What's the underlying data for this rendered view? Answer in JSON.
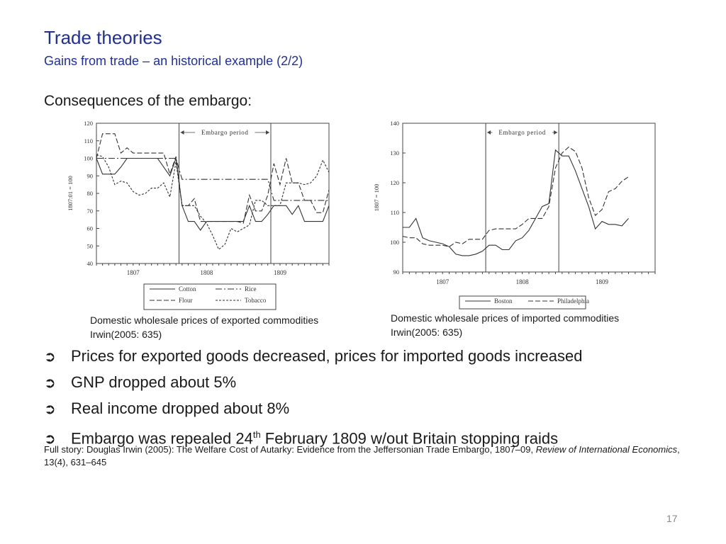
{
  "slide": {
    "title": "Trade theories",
    "subtitle": "Gains from trade – an historical example (2/2)",
    "heading": "Consequences of the embargo:",
    "page_number": "17"
  },
  "captions": [
    {
      "line1": "Domestic wholesale prices of exported commodities",
      "line2": "Irwin(2005: 635)"
    },
    {
      "line1": "Domestic wholesale prices of imported commodities",
      "line2": "Irwin(2005: 635)"
    }
  ],
  "bullets": [
    {
      "text": "Prices for exported goods decreased, prices for imported goods increased"
    },
    {
      "text": "GNP dropped about 5%"
    },
    {
      "text": "Real income dropped about 8%"
    },
    {
      "text_before": "Embargo was repealed 24",
      "sup": "th",
      "text_after": " February 1809 w/out Britain stopping raids"
    }
  ],
  "footnote": {
    "text": "Full story: Douglas Irwin (2005): The Welfare Cost of Autarky: Evidence from the Jeffersonian Trade Embargo, 1807–09, ",
    "journal": "Review of International Economics",
    "tail": ", 13(4), 631–645"
  },
  "icons": {
    "bullet": "arrow-right-icon"
  },
  "colors": {
    "title": "#1f2fa0",
    "text": "#1a1a1a",
    "lines": "#333333"
  },
  "chart_data": [
    {
      "type": "line",
      "ylabel": "1807:01 = 100",
      "ylim": [
        40,
        120
      ],
      "yticks": [
        40,
        50,
        60,
        70,
        80,
        90,
        100,
        110,
        120
      ],
      "xlim": [
        0,
        39
      ],
      "xticks": [
        {
          "label": "1807",
          "pos": 6
        },
        {
          "label": "1808",
          "pos": 18
        },
        {
          "label": "1809",
          "pos": 30
        }
      ],
      "x_count": 39,
      "annotation": {
        "label": "Embargo period",
        "start": 13.5,
        "end": 28.5
      },
      "legend_position": "bottom",
      "series": [
        {
          "name": "Cotton",
          "style": "solid",
          "values": [
            100,
            91,
            91,
            91,
            95,
            100,
            100,
            100,
            100,
            100,
            100,
            95,
            90,
            100,
            73,
            64,
            64,
            59,
            64,
            64,
            64,
            64,
            64,
            64,
            64,
            73,
            64,
            64,
            68,
            73,
            73,
            73,
            68,
            73,
            64,
            64,
            64,
            64,
            73
          ]
        },
        {
          "name": "Rice",
          "style": "dashdot",
          "values": [
            100,
            100,
            100,
            100,
            100,
            100,
            100,
            100,
            100,
            100,
            100,
            100,
            100,
            100,
            88,
            88,
            88,
            88,
            88,
            88,
            88,
            88,
            88,
            88,
            88,
            88,
            88,
            88,
            88,
            76,
            76,
            76,
            76,
            76,
            76,
            76,
            76,
            76,
            76
          ]
        },
        {
          "name": "Flour",
          "style": "dashed",
          "values": [
            100,
            114,
            114,
            114,
            103,
            106,
            103,
            103,
            103,
            103,
            103,
            103,
            91,
            101,
            73,
            73,
            77,
            64,
            64,
            64,
            64,
            64,
            64,
            64,
            63,
            79,
            70,
            70,
            79,
            97,
            85,
            100,
            86,
            86,
            76,
            76,
            69,
            69,
            82
          ]
        },
        {
          "name": "Tobacco",
          "style": "shortdash",
          "values": [
            102,
            101,
            95,
            85,
            87,
            86,
            81,
            79,
            80,
            83,
            83,
            86,
            78,
            98,
            73,
            73,
            73,
            67,
            63,
            56,
            48,
            51,
            60,
            58,
            60,
            62,
            76,
            76,
            73,
            73,
            73,
            86,
            86,
            86,
            85,
            86,
            90,
            99,
            92
          ]
        }
      ]
    },
    {
      "type": "line",
      "ylabel": "1807 = 100",
      "ylim": [
        90,
        140
      ],
      "yticks": [
        90,
        100,
        110,
        120,
        130,
        140
      ],
      "xlim": [
        0,
        39
      ],
      "xticks": [
        {
          "label": "1807",
          "pos": 6
        },
        {
          "label": "1808",
          "pos": 18
        },
        {
          "label": "1809",
          "pos": 30
        }
      ],
      "x_count": 39,
      "annotation": {
        "label": "Embargo period",
        "start": 12.5,
        "end": 23.5
      },
      "legend_position": "bottom",
      "series": [
        {
          "name": "Boston",
          "style": "solid",
          "values": [
            105,
            105,
            108,
            101.5,
            100.5,
            100,
            99.5,
            98.5,
            96,
            95.5,
            95.5,
            96,
            97,
            99,
            99,
            97.5,
            97.5,
            100.5,
            101.5,
            104,
            108,
            112,
            113,
            131,
            129,
            129,
            124,
            118,
            112,
            104.5,
            107,
            106,
            106,
            105.5,
            108
          ]
        },
        {
          "name": "Philadelphia",
          "style": "dashed",
          "values": [
            102,
            101.5,
            101.5,
            99.5,
            99,
            99,
            99,
            98.5,
            100,
            99.5,
            101,
            101,
            101,
            104,
            104.5,
            104.5,
            104.5,
            104.5,
            106,
            108,
            108,
            108,
            112,
            125,
            130,
            132,
            130.5,
            125,
            115,
            109,
            111,
            117,
            118,
            120.5,
            122
          ]
        }
      ]
    }
  ]
}
